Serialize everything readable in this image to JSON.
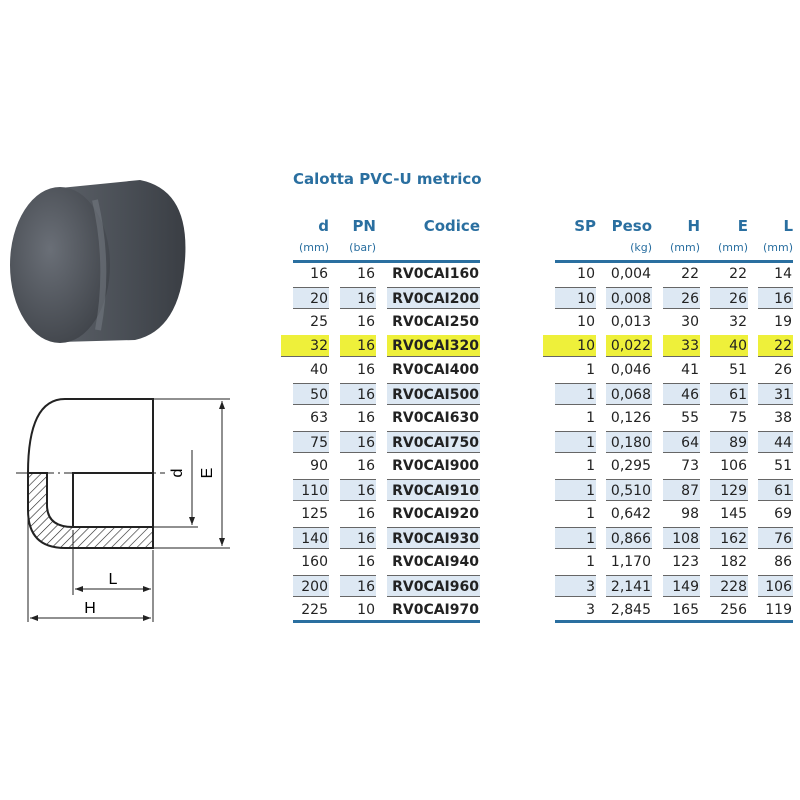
{
  "title": "Calotta PVC-U metrico",
  "left_table": {
    "headers": [
      {
        "label": "d",
        "unit": "(mm)"
      },
      {
        "label": "PN",
        "unit": "(bar)"
      },
      {
        "label": "Codice",
        "unit": ""
      }
    ]
  },
  "right_table": {
    "headers": [
      {
        "label": "SP",
        "unit": ""
      },
      {
        "label": "Peso",
        "unit": "(kg)"
      },
      {
        "label": "H",
        "unit": "(mm)"
      },
      {
        "label": "E",
        "unit": "(mm)"
      },
      {
        "label": "L",
        "unit": "(mm)"
      }
    ]
  },
  "rows": [
    [
      "16",
      "16",
      "RV0CAI160",
      "10",
      "0,004",
      "22",
      "22",
      "14"
    ],
    [
      "20",
      "16",
      "RV0CAI200",
      "10",
      "0,008",
      "26",
      "26",
      "16"
    ],
    [
      "25",
      "16",
      "RV0CAI250",
      "10",
      "0,013",
      "30",
      "32",
      "19"
    ],
    [
      "32",
      "16",
      "RV0CAI320",
      "10",
      "0,022",
      "33",
      "40",
      "22"
    ],
    [
      "40",
      "16",
      "RV0CAI400",
      "1",
      "0,046",
      "41",
      "51",
      "26"
    ],
    [
      "50",
      "16",
      "RV0CAI500",
      "1",
      "0,068",
      "46",
      "61",
      "31"
    ],
    [
      "63",
      "16",
      "RV0CAI630",
      "1",
      "0,126",
      "55",
      "75",
      "38"
    ],
    [
      "75",
      "16",
      "RV0CAI750",
      "1",
      "0,180",
      "64",
      "89",
      "44"
    ],
    [
      "90",
      "16",
      "RV0CAI900",
      "1",
      "0,295",
      "73",
      "106",
      "51"
    ],
    [
      "110",
      "16",
      "RV0CAI910",
      "1",
      "0,510",
      "87",
      "129",
      "61"
    ],
    [
      "125",
      "16",
      "RV0CAI920",
      "1",
      "0,642",
      "98",
      "145",
      "69"
    ],
    [
      "140",
      "16",
      "RV0CAI930",
      "1",
      "0,866",
      "108",
      "162",
      "76"
    ],
    [
      "160",
      "16",
      "RV0CAI940",
      "1",
      "1,170",
      "123",
      "182",
      "86"
    ],
    [
      "200",
      "16",
      "RV0CAI960",
      "3",
      "2,141",
      "149",
      "228",
      "106"
    ],
    [
      "225",
      "10",
      "RV0CAI970",
      "3",
      "2,845",
      "165",
      "256",
      "119"
    ]
  ],
  "highlighted_row": 3,
  "drawing_labels": {
    "d": "d",
    "E": "E",
    "L": "L",
    "H": "H"
  },
  "colors": {
    "accent": "#2a6fa0",
    "shade": "#dde8f3",
    "highlight": "#eef03a"
  }
}
